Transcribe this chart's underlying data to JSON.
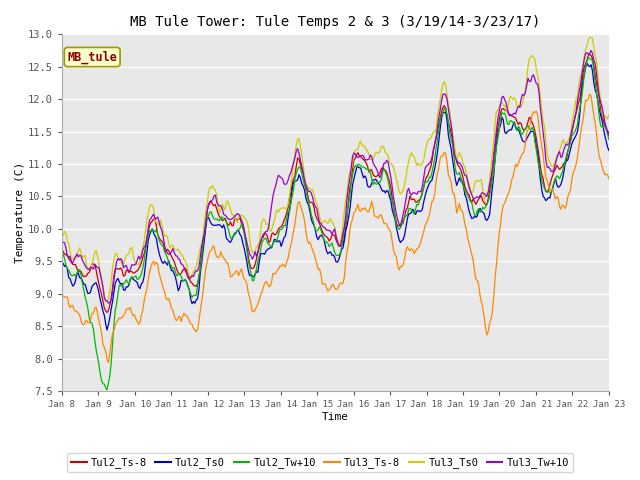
{
  "title": "MB Tule Tower: Tule Temps 2 & 3 (3/19/14-3/23/17)",
  "xlabel": "Time",
  "ylabel": "Temperature (C)",
  "ylim": [
    7.5,
    13.0
  ],
  "xlim": [
    0,
    15
  ],
  "x_tick_labels": [
    "Jan 8",
    "Jan 9",
    "Jan 10",
    "Jan 11",
    "Jan 12",
    "Jan 13",
    "Jan 14",
    "Jan 15",
    "Jan 16",
    "Jan 17",
    "Jan 18",
    "Jan 19",
    "Jan 20",
    "Jan 21",
    "Jan 22",
    "Jan 23"
  ],
  "series_colors": {
    "Tul2_Ts-8": "#cc0000",
    "Tul2_Ts0": "#0000cc",
    "Tul2_Tw+10": "#00bb00",
    "Tul3_Ts-8": "#ff8800",
    "Tul3_Ts0": "#cccc00",
    "Tul3_Tw+10": "#9900cc"
  },
  "background_color": "#e8e8e8",
  "grid_color": "#ffffff"
}
